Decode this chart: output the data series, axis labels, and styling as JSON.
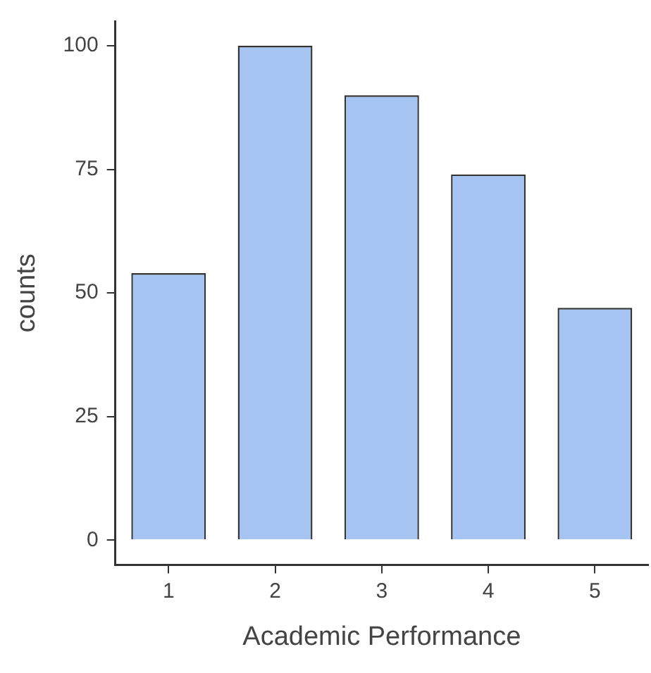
{
  "chart_data": {
    "type": "bar",
    "xlabel": "Academic Performance",
    "ylabel": "counts",
    "categories": [
      "1",
      "2",
      "3",
      "4",
      "5"
    ],
    "values": [
      54,
      100,
      90,
      74,
      47
    ],
    "color": "#a6c4f2",
    "ylim": [
      -5,
      105
    ],
    "yticks": [
      0,
      25,
      50,
      75,
      100
    ],
    "grid": false,
    "legend": false
  }
}
